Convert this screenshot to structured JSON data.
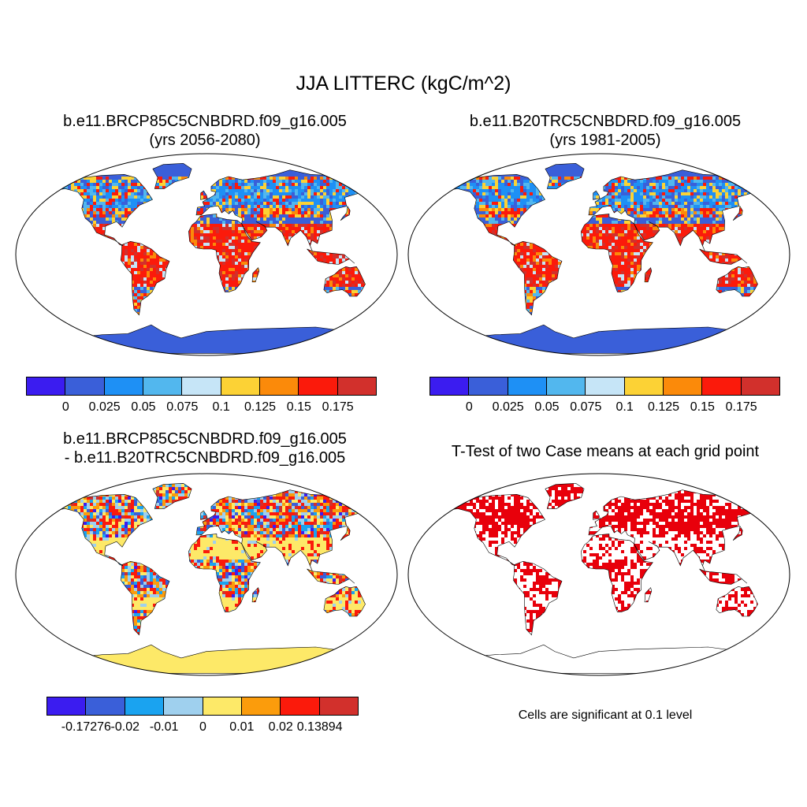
{
  "title": "JJA LITTERC (kgC/m^2)",
  "panels": [
    {
      "title_line1": "b.e11.BRCP85C5CNBDRD.f09_g16.005",
      "title_line2": "(yrs 2056-2080)"
    },
    {
      "title_line1": "b.e11.B20TRC5CNBDRD.f09_g16.005",
      "title_line2": "(yrs 1981-2005)"
    },
    {
      "title_line1": "b.e11.BRCP85C5CNBDRD.f09_g16.005",
      "title_line2": "- b.e11.B20TRC5CNBDRD.f09_g16.005"
    },
    {
      "title_line1": "T-Test of two Case means at each grid point"
    }
  ],
  "significance_note": "Cells are significant at 0.1 level",
  "colorbars": {
    "absolute": {
      "colors": [
        "#3b1cf0",
        "#3a5fd9",
        "#1e90f5",
        "#52b7ee",
        "#c6e5f7",
        "#fcd235",
        "#fb8a0a",
        "#fb1a0b",
        "#d2302c"
      ],
      "labels": [
        "0",
        "0.025",
        "0.05",
        "0.075",
        "0.1",
        "0.125",
        "0.15",
        "0.175"
      ]
    },
    "difference": {
      "colors": [
        "#3b1cf0",
        "#3a5fd9",
        "#1aa3f0",
        "#9fd0ee",
        "#fde968",
        "#fb9c0c",
        "#fb1a0b",
        "#d2302c"
      ],
      "labels": [
        "-0.17276",
        "-0.02",
        "-0.01",
        "0",
        "0.01",
        "0.02",
        "0.13894"
      ]
    }
  },
  "legend_colors": {
    "significant": "#e8000b",
    "land_blue": "#3a5fd9",
    "land_yellow": "#fde968",
    "outline": "#000000"
  }
}
